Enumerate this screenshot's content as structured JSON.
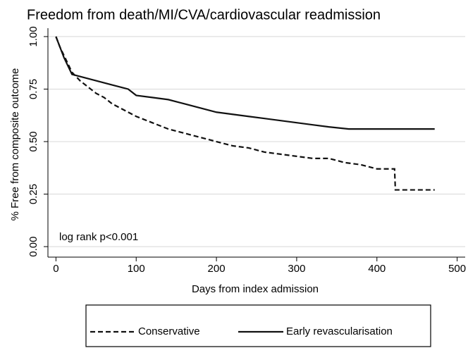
{
  "chart_data": {
    "type": "line",
    "title": "Freedom from death/MI/CVA/cardiovascular readmission",
    "x_label": "Days from index admission",
    "y_label": "% Free from composite outcome",
    "annotation": "log rank p<0.001",
    "xlim": [
      -10,
      510
    ],
    "ylim": [
      -0.05,
      1.04
    ],
    "xticks": [
      0,
      100,
      200,
      300,
      400,
      500
    ],
    "yticks": [
      {
        "value": 0,
        "label": "0.00"
      },
      {
        "value": 0.25,
        "label": "0.25"
      },
      {
        "value": 0.5,
        "label": "0.50"
      },
      {
        "value": 0.75,
        "label": "0.75"
      },
      {
        "value": 1,
        "label": "1.00"
      }
    ],
    "grid": true,
    "legend": "bottom",
    "series": [
      {
        "name": "Conservative",
        "color": "#111111",
        "dash": true,
        "x": [
          0,
          5,
          10,
          15,
          20,
          30,
          40,
          50,
          60,
          70,
          80,
          90,
          100,
          120,
          140,
          160,
          180,
          200,
          220,
          240,
          260,
          280,
          300,
          320,
          340,
          360,
          380,
          400,
          422,
          423,
          472
        ],
        "values": [
          1.0,
          0.95,
          0.91,
          0.87,
          0.83,
          0.79,
          0.76,
          0.73,
          0.71,
          0.68,
          0.66,
          0.64,
          0.62,
          0.59,
          0.56,
          0.54,
          0.52,
          0.5,
          0.48,
          0.47,
          0.45,
          0.44,
          0.43,
          0.42,
          0.42,
          0.4,
          0.39,
          0.37,
          0.37,
          0.27,
          0.27
        ]
      },
      {
        "name": "Early revascularisation",
        "color": "#111111",
        "dash": false,
        "x": [
          0,
          5,
          10,
          15,
          20,
          30,
          40,
          50,
          70,
          90,
          100,
          120,
          140,
          160,
          180,
          200,
          220,
          240,
          260,
          280,
          300,
          320,
          340,
          365,
          472
        ],
        "values": [
          1.0,
          0.95,
          0.9,
          0.86,
          0.82,
          0.81,
          0.8,
          0.79,
          0.77,
          0.75,
          0.72,
          0.71,
          0.7,
          0.68,
          0.66,
          0.64,
          0.63,
          0.62,
          0.61,
          0.6,
          0.59,
          0.58,
          0.57,
          0.56,
          0.56
        ]
      }
    ]
  }
}
